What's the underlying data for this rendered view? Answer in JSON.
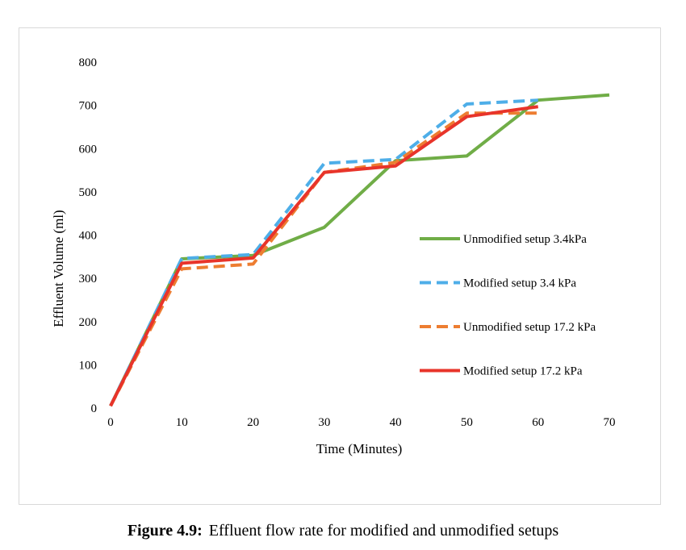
{
  "chart_data": {
    "type": "line",
    "xlabel": "Time (Minutes)",
    "ylabel": "Effluent Volume (ml)",
    "xlim": [
      0,
      70
    ],
    "ylim": [
      0,
      800
    ],
    "xticks": [
      0,
      10,
      20,
      30,
      40,
      50,
      60,
      70
    ],
    "yticks": [
      0,
      100,
      200,
      300,
      400,
      500,
      600,
      700,
      800
    ],
    "grid": false,
    "legend_position": "right",
    "series": [
      {
        "name": "Unmodified setup 3.4kPa",
        "color": "#70ad47",
        "dash": "solid",
        "x": [
          0,
          10,
          20,
          30,
          40,
          50,
          60,
          70
        ],
        "y": [
          5,
          345,
          353,
          418,
          572,
          583,
          712,
          724
        ]
      },
      {
        "name": "Modified setup 3.4 kPa",
        "color": "#4eaee8",
        "dash": "dashed",
        "x": [
          0,
          10,
          20,
          30,
          40,
          50,
          60
        ],
        "y": [
          5,
          346,
          355,
          566,
          575,
          703,
          712
        ]
      },
      {
        "name": "Unmodified setup 17.2 kPa",
        "color": "#ed7d31",
        "dash": "dashed",
        "x": [
          0,
          10,
          20,
          30,
          40,
          50,
          60
        ],
        "y": [
          5,
          322,
          333,
          545,
          568,
          682,
          682
        ]
      },
      {
        "name": "Modified setup 17.2 kPa",
        "color": "#e8342a",
        "dash": "solid",
        "x": [
          0,
          10,
          20,
          30,
          40,
          50,
          60
        ],
        "y": [
          5,
          335,
          347,
          545,
          560,
          674,
          697
        ]
      }
    ]
  },
  "caption": {
    "number": "Figure 4.9:",
    "text": "Effluent flow rate for modified and unmodified setups"
  }
}
